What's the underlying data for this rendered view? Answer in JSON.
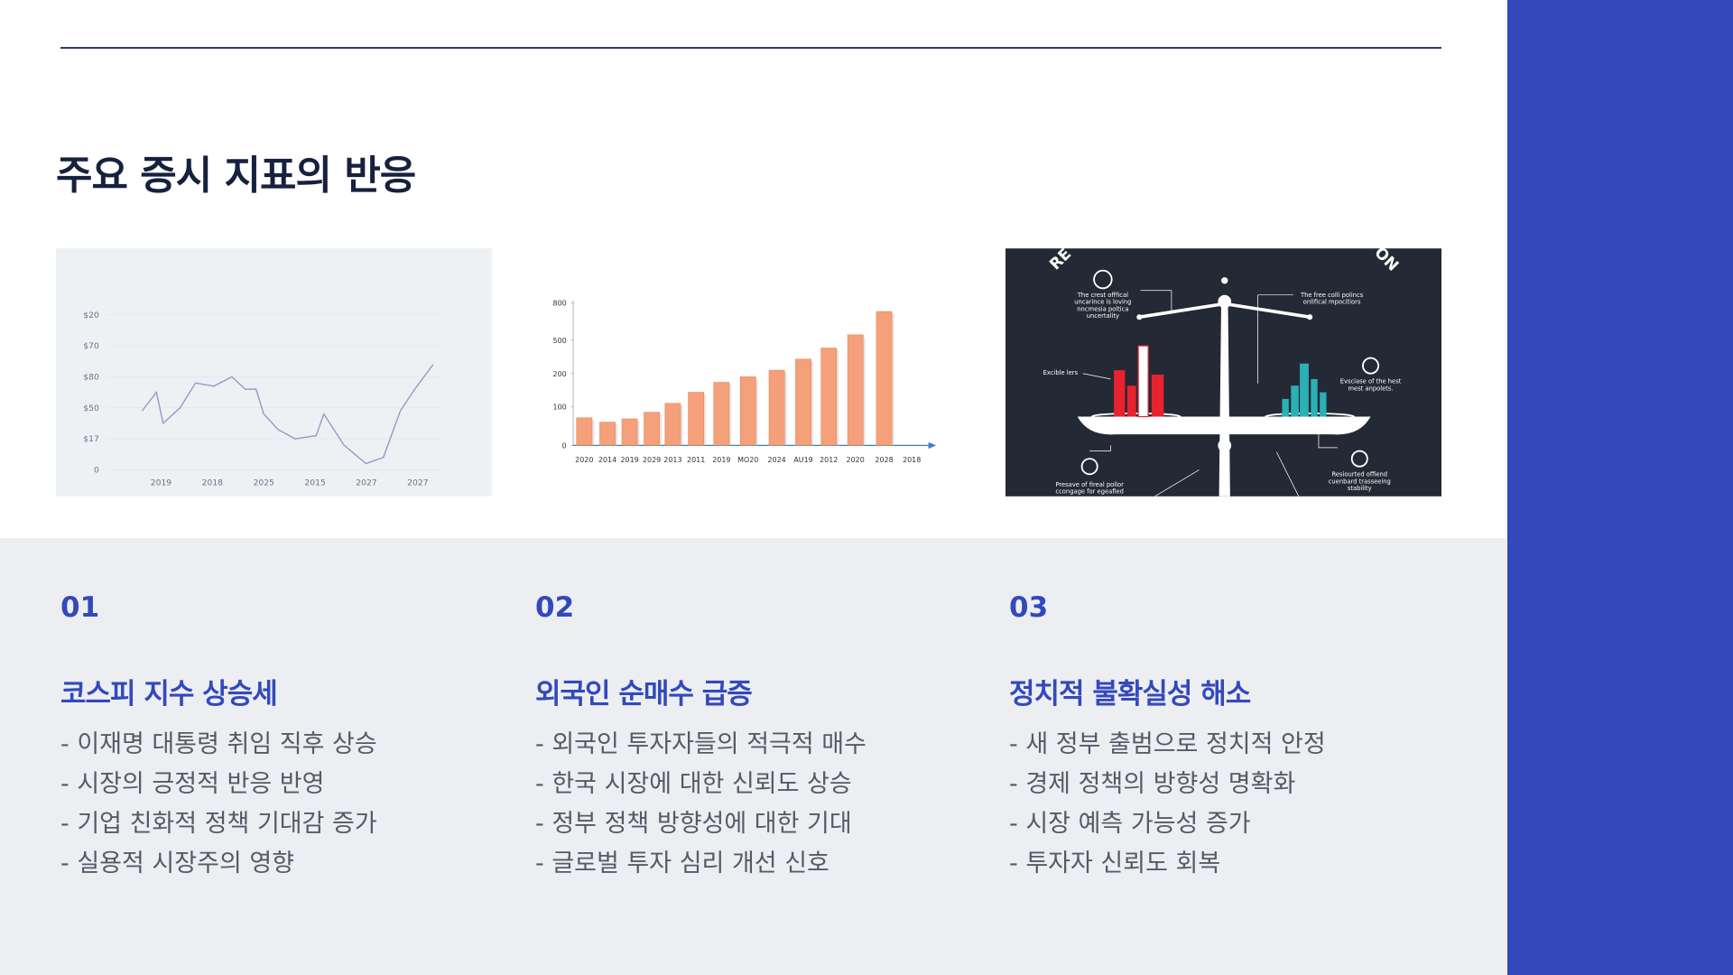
{
  "slide": {
    "title": "주요 증시 지표의 반응"
  },
  "chart_data": [
    {
      "type": "line",
      "color": "#9a9cc8",
      "x": [
        0.63,
        0.91,
        1.04,
        1.37,
        1.67,
        2.03,
        2.38,
        2.64,
        2.85,
        3.0,
        3.28,
        3.61,
        4.02,
        4.17,
        4.56,
        4.99,
        5.33,
        5.66,
        5.94,
        6.3
      ],
      "values": [
        1.9,
        2.5,
        1.5,
        2.0,
        2.8,
        2.7,
        3.0,
        2.6,
        2.6,
        1.8,
        1.3,
        1.0,
        1.1,
        1.8,
        0.8,
        0.2,
        0.4,
        1.9,
        2.6,
        3.4
      ],
      "xlim": [
        0,
        7
      ],
      "xticks": [
        {
          "value": 1,
          "label": "2019"
        },
        {
          "value": 2,
          "label": "2018"
        },
        {
          "value": 3,
          "label": "2025"
        },
        {
          "value": 4,
          "label": "2015"
        },
        {
          "value": 5,
          "label": "2027"
        },
        {
          "value": 6,
          "label": "2027"
        }
      ],
      "ylim": [
        0,
        5.8
      ],
      "yticks": [
        0,
        {
          "value": 1,
          "label": "$17"
        },
        {
          "value": 2,
          "label": "$50"
        },
        {
          "value": 3,
          "label": "$80"
        },
        {
          "value": 4,
          "label": "$70"
        },
        {
          "value": 5,
          "label": "$20"
        }
      ],
      "grid": true
    },
    {
      "type": "bar",
      "color": "#f4a07a",
      "categories": [
        "2020",
        "2014",
        "2019",
        "2029",
        "2013",
        "2011",
        "2019",
        "MO20",
        "2024",
        "AU19",
        "2012",
        "2020",
        "2028",
        "2018"
      ],
      "values": [
        25,
        21,
        24,
        30,
        38,
        48,
        57,
        62,
        68,
        78,
        88,
        100,
        121,
        null
      ],
      "ylim": [
        0,
        135
      ],
      "yticks": [
        0,
        {
          "value": 35,
          "label": "100"
        },
        {
          "value": 65,
          "label": "200"
        },
        {
          "value": 95,
          "label": "500"
        },
        {
          "value": 129,
          "label": "800"
        }
      ]
    }
  ],
  "infographic": {
    "heading_left": "RE",
    "heading_right": "ON",
    "captions": [
      [
        "The crest offfical",
        "uncarince is loving",
        "nncmesia poltica",
        "uncertality"
      ],
      [
        "The free colli polincs",
        "onlifical mpocitiors"
      ],
      [
        "Excible lers"
      ],
      [
        "Evsciase of the hest",
        "mest anpolets."
      ],
      [
        "Presave of fireal pollor",
        "ccongage for egeafied"
      ],
      [
        "Resiourted offiend",
        "cuenbard trasseeing",
        "stability"
      ]
    ]
  },
  "points": [
    {
      "number": "01",
      "heading": "코스피 지수 상승세",
      "bullets": [
        "- 이재명 대통령 취임 직후 상승",
        "- 시장의 긍정적 반응 반영",
        "- 기업 친화적 정책 기대감 증가",
        "- 실용적 시장주의 영향"
      ]
    },
    {
      "number": "02",
      "heading": "외국인 순매수 급증",
      "bullets": [
        "- 외국인 투자자들의 적극적 매수",
        "- 한국 시장에 대한 신뢰도 상승",
        "- 정부 정책 방향성에 대한 기대",
        "- 글로벌 투자 심리 개선 신호"
      ]
    },
    {
      "number": "03",
      "heading": "정치적 불확실성 해소",
      "bullets": [
        "- 새 정부 출범으로 정치적 안정",
        "- 경제 정책의 방향성 명확화",
        "- 시장 예측 가능성 증가",
        "- 투자자 신뢰도 회복"
      ]
    }
  ]
}
